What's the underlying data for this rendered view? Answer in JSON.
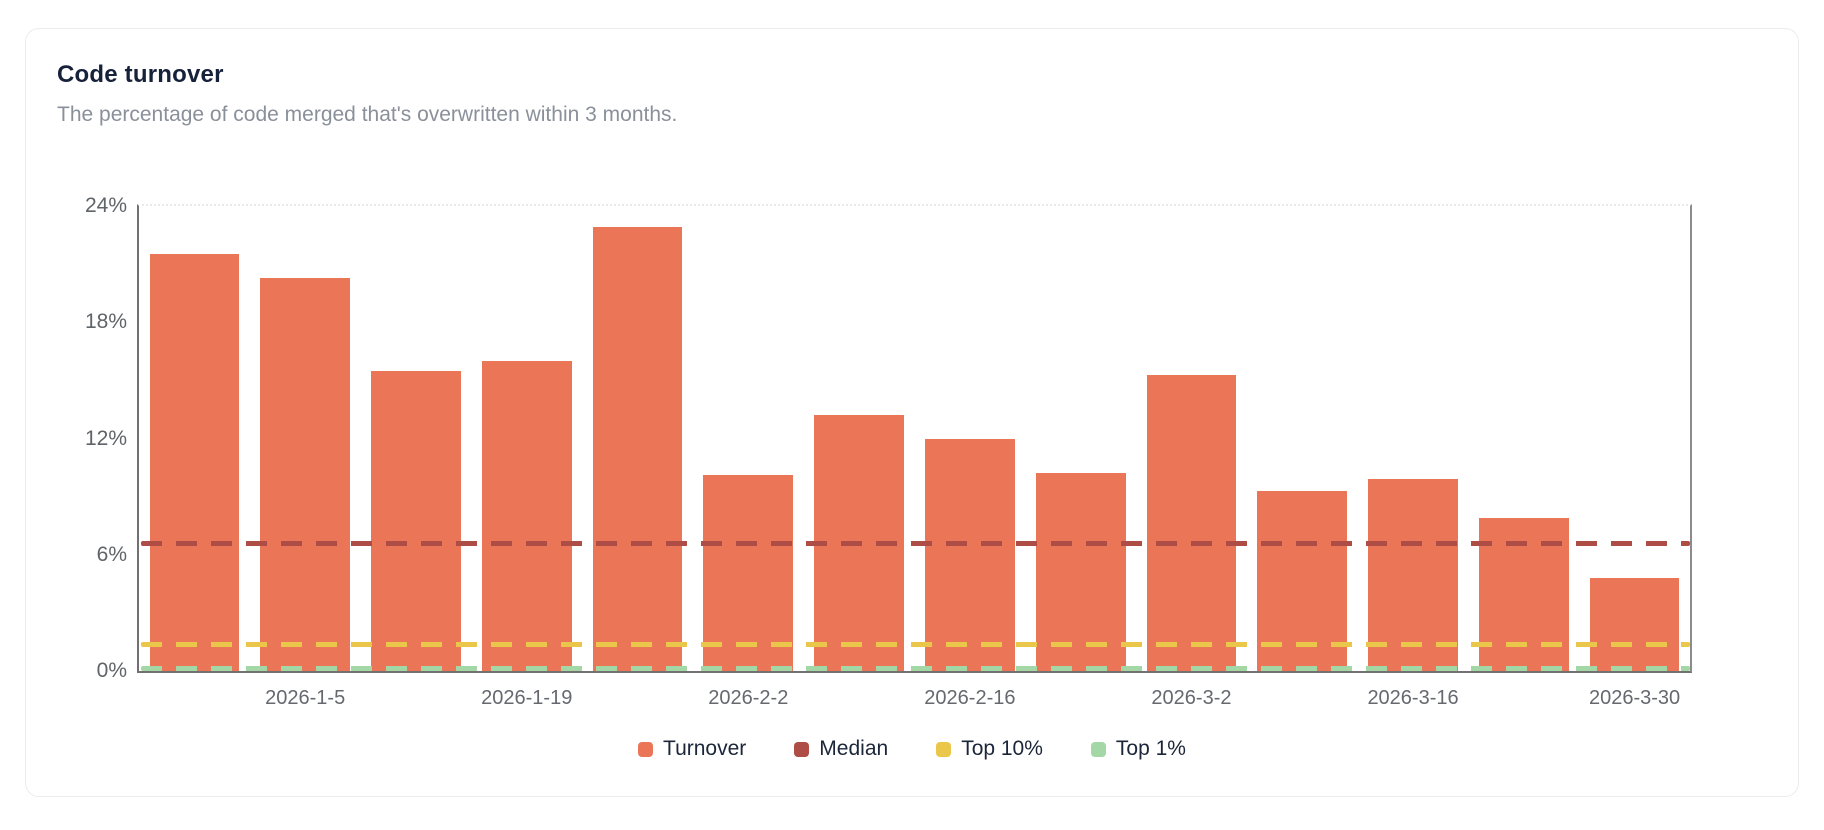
{
  "card": {
    "title": "Code turnover",
    "subtitle": "The percentage of code merged that's overwritten within 3 months."
  },
  "chart_data": {
    "type": "bar",
    "title": "Code turnover",
    "xlabel": "",
    "ylabel": "",
    "ylim": [
      0,
      24
    ],
    "grid": "top-border-only",
    "legend_position": "bottom-center",
    "y_ticks": [
      {
        "value": 24,
        "label": "24%"
      },
      {
        "value": 18,
        "label": "18%"
      },
      {
        "value": 12,
        "label": "12%"
      },
      {
        "value": 6,
        "label": "6%"
      },
      {
        "value": 0,
        "label": "0%"
      }
    ],
    "bars": {
      "name": "Turnover",
      "color": "#ea7557",
      "values": [
        21.5,
        20.3,
        15.5,
        16.0,
        22.9,
        10.1,
        13.2,
        12.0,
        10.2,
        15.3,
        9.3,
        9.9,
        7.9,
        4.8
      ]
    },
    "x_tick_labels": [
      {
        "bar_index": 1,
        "label": "2026-1-5"
      },
      {
        "bar_index": 3,
        "label": "2026-1-19"
      },
      {
        "bar_index": 5,
        "label": "2026-2-2"
      },
      {
        "bar_index": 7,
        "label": "2026-2-16"
      },
      {
        "bar_index": 9,
        "label": "2026-3-2"
      },
      {
        "bar_index": 11,
        "label": "2026-3-16"
      },
      {
        "bar_index": 13,
        "label": "2026-3-30"
      }
    ],
    "reference_lines": [
      {
        "name": "Median",
        "value": 6.6,
        "color": "#ae4c46",
        "style": "dashed"
      },
      {
        "name": "Top 10%",
        "value": 1.4,
        "color": "#eac74b",
        "style": "dashed"
      },
      {
        "name": "Top 1%",
        "value": 0.15,
        "color": "#a3d7a6",
        "style": "dashed"
      }
    ],
    "legend": [
      {
        "label": "Turnover",
        "color": "#ea7557"
      },
      {
        "label": "Median",
        "color": "#ae4c46"
      },
      {
        "label": "Top 10%",
        "color": "#eac74b"
      },
      {
        "label": "Top 1%",
        "color": "#a3d7a6"
      }
    ]
  },
  "colors": {
    "card_border": "#eaecef",
    "title_text": "#16213a",
    "subtitle_text": "#8a909a",
    "axis_line": "#73716f",
    "tick_text": "#5f6468"
  }
}
